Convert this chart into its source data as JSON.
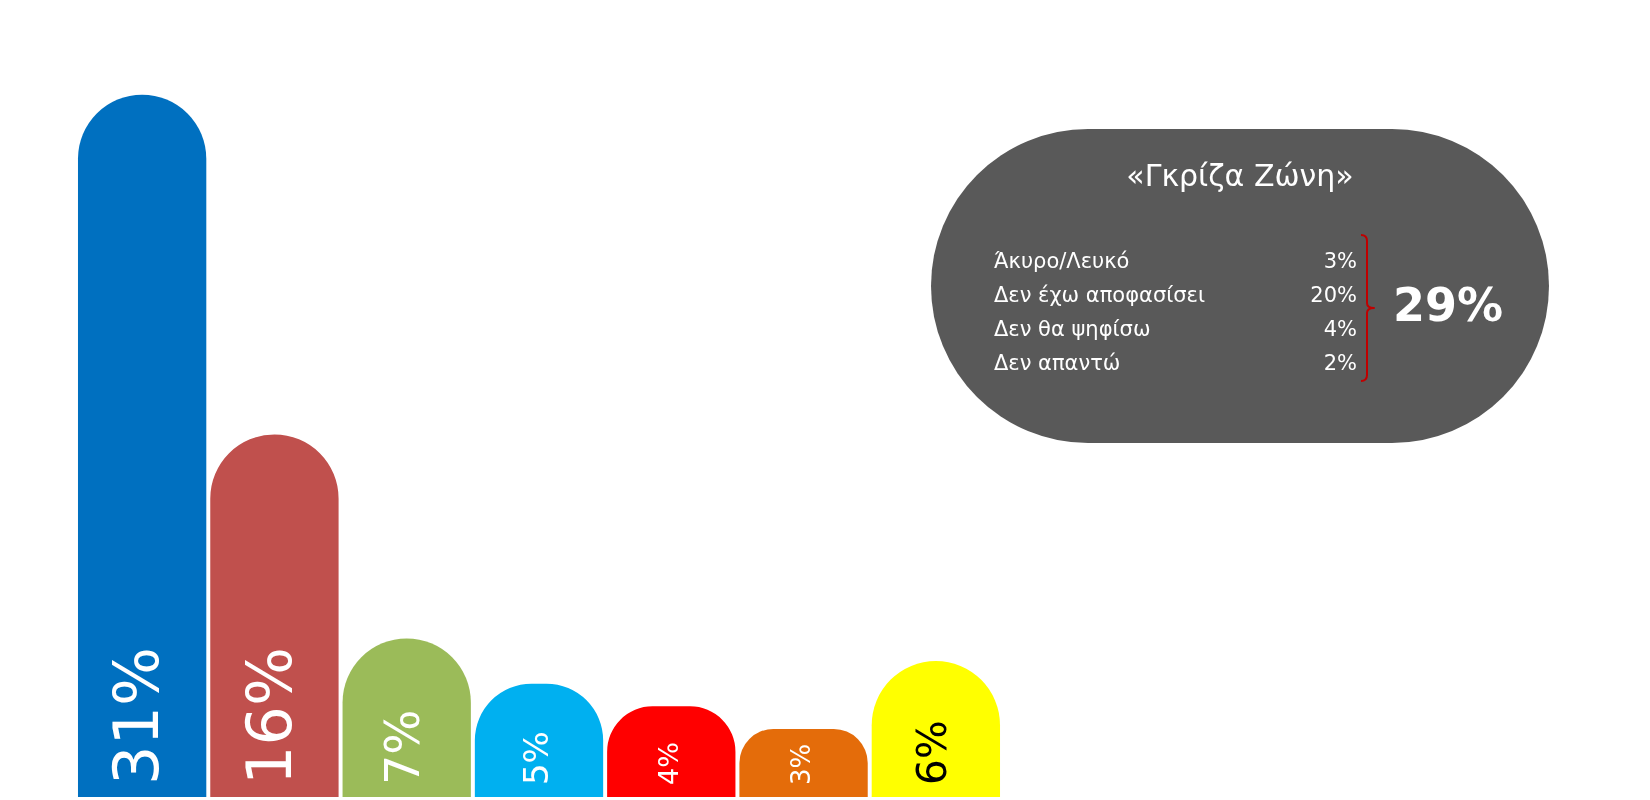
{
  "chart_data": [
    {
      "type": "bar",
      "categories": [
        null,
        null,
        null,
        null,
        null,
        null,
        null
      ],
      "values": [
        31,
        16,
        7,
        5,
        4,
        3,
        6
      ],
      "colors": [
        "#0070c0",
        "#c0504d",
        "#9bbb59",
        "#00b0f0",
        "#ff0000",
        "#e46c0a",
        "#ffff00"
      ],
      "value_labels": [
        "31%",
        "16%",
        "7%",
        "5%",
        "4%",
        "3%",
        "6%"
      ]
    },
    {
      "type": "other",
      "title": "«Γκρίζα Ζώνη»",
      "annotations": [
        "Άκυρο/Λευκό",
        "3%",
        "Δεν έχω αποφασίσει",
        "20%",
        "Δεν θα ψηφίσω",
        "4%",
        "Δεν απαντώ",
        "2%",
        "29%"
      ]
    }
  ]
}
